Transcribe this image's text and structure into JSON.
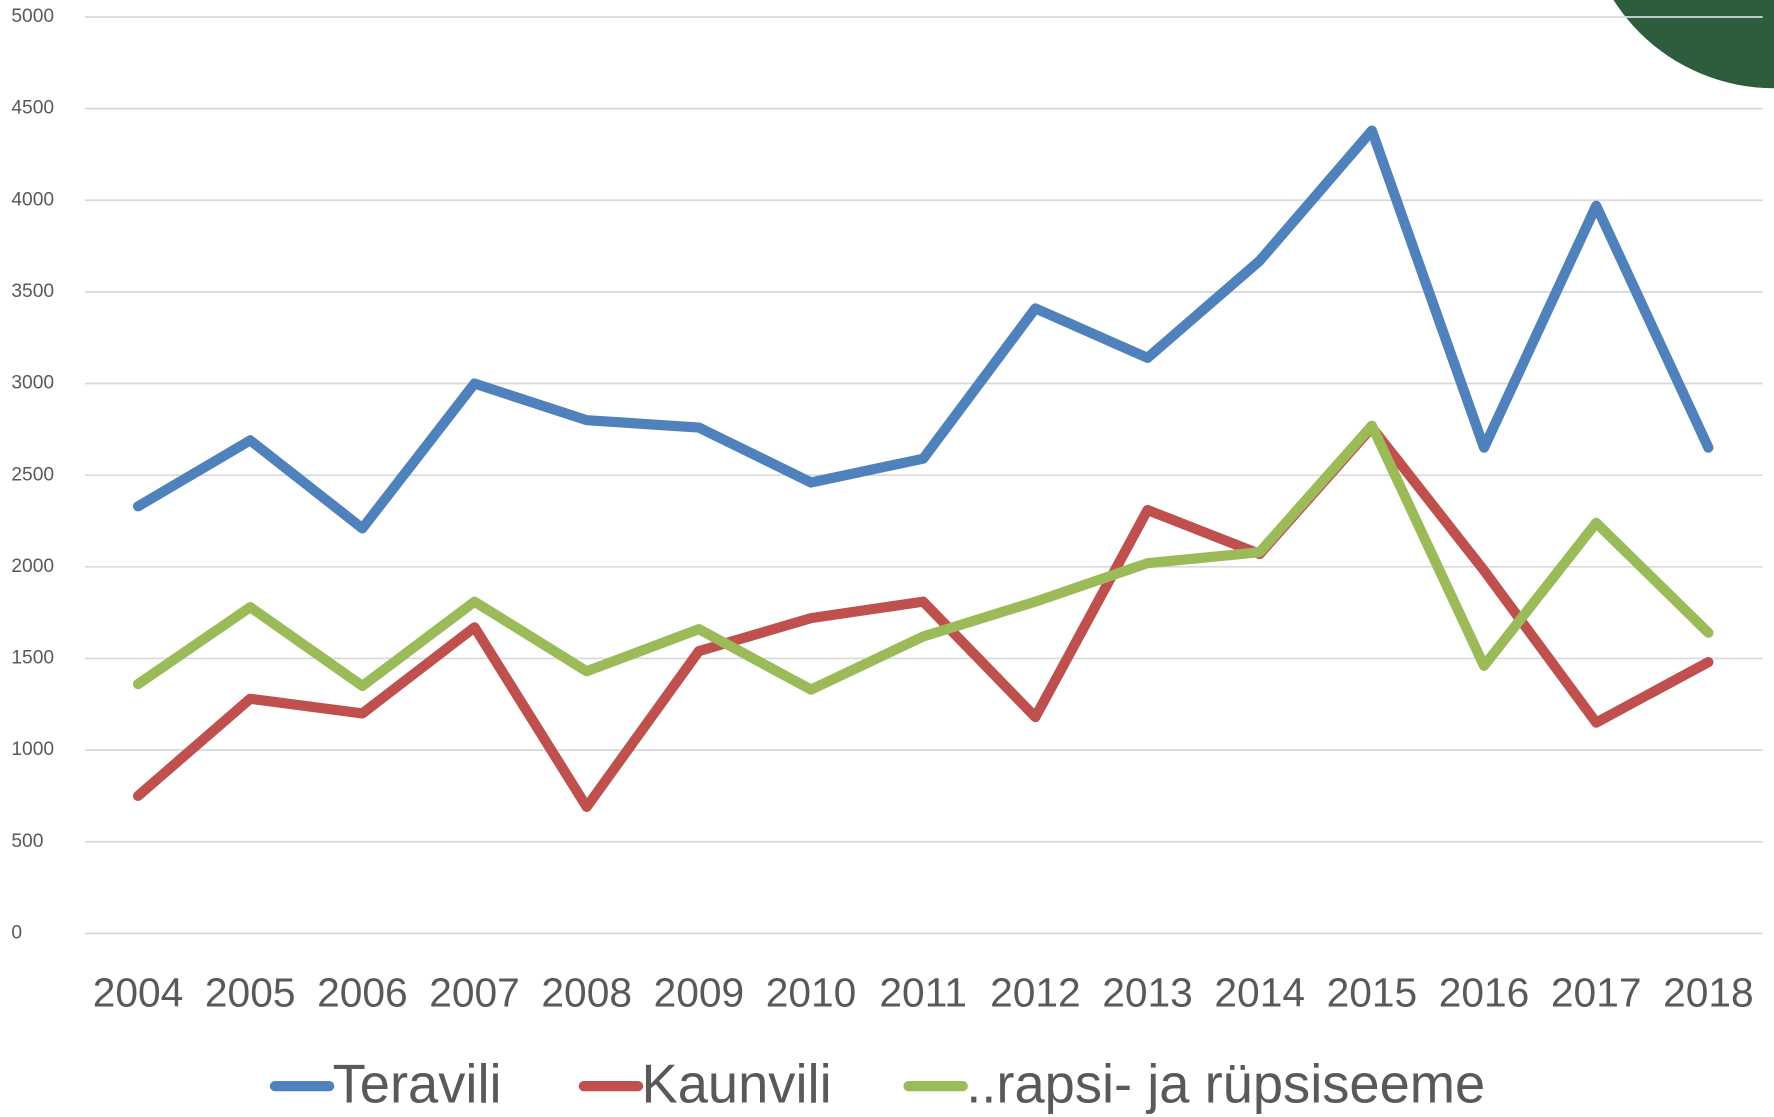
{
  "chart_data": {
    "type": "line",
    "x": [
      2004,
      2005,
      2006,
      2007,
      2008,
      2009,
      2010,
      2011,
      2012,
      2013,
      2014,
      2015,
      2016,
      2017,
      2018
    ],
    "xlim": [
      2004,
      2018
    ],
    "xticks": [
      2004,
      2005,
      2006,
      2007,
      2008,
      2009,
      2010,
      2011,
      2012,
      2013,
      2014,
      2015,
      2016,
      2017,
      2018
    ],
    "ylim": [
      0,
      5000
    ],
    "yticks": [
      0,
      500,
      1000,
      1500,
      2000,
      2500,
      3000,
      3500,
      4000,
      4500,
      5000
    ],
    "grid": true,
    "legend": "bottom",
    "series": [
      {
        "name": "Teravili",
        "color": "#4f81bd",
        "values": [
          2330,
          2690,
          2210,
          3000,
          2800,
          2760,
          2460,
          2590,
          3410,
          3140,
          3670,
          4380,
          2650,
          3970,
          2650
        ]
      },
      {
        "name": "Kaunvili",
        "color": "#c0504d",
        "values": [
          750,
          1280,
          1200,
          1670,
          690,
          1540,
          1720,
          1810,
          1180,
          2310,
          2070,
          2760,
          1980,
          1150,
          1480
        ]
      },
      {
        "name": "..rapsi- ja rüpsiseeme",
        "color": "#9bbb59",
        "values": [
          1360,
          1780,
          1350,
          1810,
          1430,
          1660,
          1330,
          1620,
          1810,
          2020,
          2080,
          2770,
          1460,
          2240,
          1640
        ]
      }
    ]
  }
}
